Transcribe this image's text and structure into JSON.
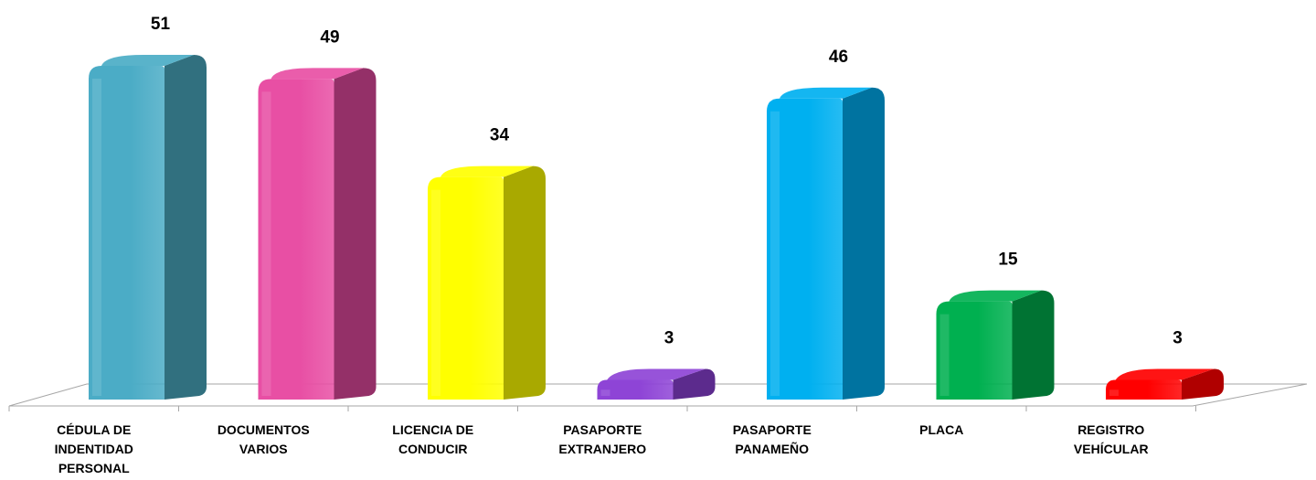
{
  "chart_data": {
    "type": "bar",
    "title": "",
    "xlabel": "",
    "ylabel": "",
    "ylim": [
      0,
      51
    ],
    "grid": false,
    "legend": "none",
    "categories": [
      [
        "CÉDULA DE",
        "INDENTIDAD",
        "PERSONAL"
      ],
      [
        "DOCUMENTOS",
        "VARIOS"
      ],
      [
        "LICENCIA DE",
        "CONDUCIR"
      ],
      [
        "PASAPORTE",
        "EXTRANJERO"
      ],
      [
        "PASAPORTE",
        "PANAMEÑO"
      ],
      [
        "PLACA"
      ],
      [
        "REGISTRO",
        "VEHÍCULAR"
      ]
    ],
    "values": [
      51,
      49,
      34,
      3,
      46,
      15,
      3
    ],
    "colors": [
      "#4bacc6",
      "#e84fa4",
      "#ffff00",
      "#8e44d6",
      "#00b0f0",
      "#00b050",
      "#ff0000"
    ],
    "side_colors": [
      "#31707f",
      "#943068",
      "#a9a900",
      "#5c2b8d",
      "#0073a0",
      "#007333",
      "#b00000"
    ]
  }
}
